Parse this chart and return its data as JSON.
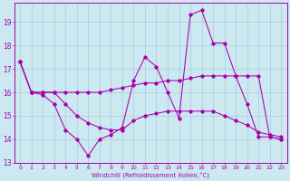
{
  "bg_color": "#cce8f0",
  "grid_color": "#aaccd8",
  "line_color": "#aa00aa",
  "xlabel": "Windchill (Refroidissement éolien,°C)",
  "xlim": [
    -0.5,
    23.5
  ],
  "ylim": [
    13.0,
    19.8
  ],
  "yticks": [
    13,
    14,
    15,
    16,
    17,
    18,
    19
  ],
  "xticks": [
    0,
    1,
    2,
    3,
    4,
    5,
    6,
    7,
    8,
    9,
    10,
    11,
    12,
    13,
    14,
    15,
    16,
    17,
    18,
    19,
    20,
    21,
    22,
    23
  ],
  "series1_x": [
    0,
    1,
    2,
    3,
    4,
    5,
    6,
    7,
    8,
    9,
    10,
    11,
    12,
    13,
    14,
    15,
    16,
    17,
    18,
    19,
    20,
    21,
    22,
    23
  ],
  "series1_y": [
    17.3,
    16.0,
    15.9,
    15.5,
    14.4,
    14.0,
    13.3,
    14.0,
    14.2,
    14.5,
    16.5,
    17.5,
    17.1,
    16.0,
    14.9,
    19.3,
    19.5,
    18.1,
    18.1,
    16.7,
    15.5,
    14.1,
    14.1,
    14.0
  ],
  "series2_x": [
    0,
    1,
    2,
    3,
    4,
    5,
    6,
    7,
    8,
    9,
    10,
    11,
    12,
    13,
    14,
    15,
    16,
    17,
    18,
    19,
    20,
    21,
    22,
    23
  ],
  "series2_y": [
    17.3,
    16.0,
    16.0,
    16.0,
    16.0,
    16.0,
    16.0,
    16.0,
    16.1,
    16.2,
    16.3,
    16.4,
    16.4,
    16.5,
    16.5,
    16.6,
    16.7,
    16.7,
    16.7,
    16.7,
    16.7,
    16.7,
    14.1,
    14.0
  ],
  "series3_x": [
    0,
    1,
    2,
    3,
    4,
    5,
    6,
    7,
    8,
    9,
    10,
    11,
    12,
    13,
    14,
    15,
    16,
    17,
    18,
    19,
    20,
    21,
    22,
    23
  ],
  "series3_y": [
    17.3,
    16.0,
    16.0,
    16.0,
    15.5,
    15.0,
    14.7,
    14.5,
    14.4,
    14.4,
    14.8,
    15.0,
    15.1,
    15.2,
    15.2,
    15.2,
    15.2,
    15.2,
    15.0,
    14.8,
    14.6,
    14.3,
    14.2,
    14.1
  ]
}
